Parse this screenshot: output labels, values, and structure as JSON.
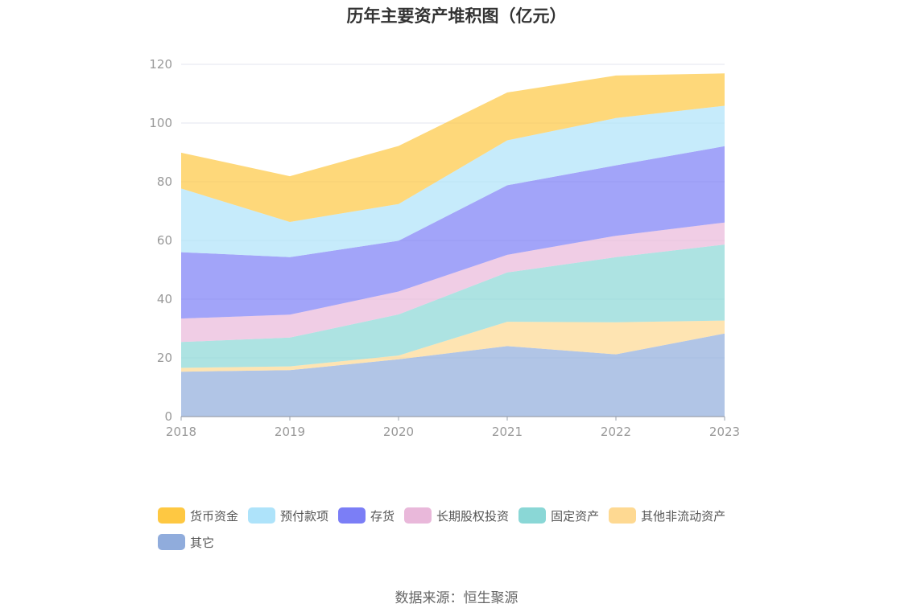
{
  "chart_data": {
    "type": "area",
    "stacked": true,
    "title": "历年主要资产堆积图（亿元）",
    "x": [
      "2018",
      "2019",
      "2020",
      "2021",
      "2022",
      "2023"
    ],
    "ylim": [
      0,
      120
    ],
    "yticks": [
      0,
      20,
      40,
      60,
      80,
      100,
      120
    ],
    "grid": true,
    "legend_position": "bottom",
    "series": [
      {
        "name": "其它",
        "color": "#90acdc",
        "values": [
          15.3,
          15.8,
          19.5,
          24.0,
          21.2,
          28.3
        ]
      },
      {
        "name": "其他非流动资产",
        "color": "#fed992",
        "values": [
          1.3,
          1.3,
          1.3,
          8.3,
          10.9,
          4.4
        ]
      },
      {
        "name": "固定资产",
        "color": "#8ad7d6",
        "values": [
          8.8,
          9.8,
          14.0,
          16.8,
          22.2,
          25.9
        ]
      },
      {
        "name": "长期股权投资",
        "color": "#e9b8da",
        "values": [
          8.0,
          7.8,
          7.8,
          6.0,
          7.3,
          7.5
        ]
      },
      {
        "name": "存货",
        "color": "#7b7ef6",
        "values": [
          22.6,
          19.6,
          17.3,
          23.7,
          24.0,
          26.0
        ]
      },
      {
        "name": "预付款项",
        "color": "#aee3fa",
        "values": [
          21.7,
          12.0,
          12.5,
          15.3,
          16.1,
          13.8
        ]
      },
      {
        "name": "货币资金",
        "color": "#fec842",
        "values": [
          12.2,
          15.6,
          19.8,
          16.3,
          14.5,
          11.0
        ]
      }
    ],
    "legend_order": [
      "货币资金",
      "预付款项",
      "存货",
      "长期股权投资",
      "固定资产",
      "其他非流动资产",
      "其它"
    ]
  },
  "source": "数据来源：恒生聚源"
}
